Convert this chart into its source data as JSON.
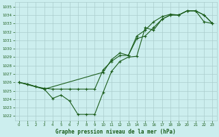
{
  "title": "Graphe pression niveau de la mer (hPa)",
  "background_color": "#cceeee",
  "grid_color": "#aacccc",
  "line_color": "#1a5c1a",
  "xlim": [
    -0.5,
    23.5
  ],
  "ylim": [
    1021.5,
    1035.5
  ],
  "xticks": [
    0,
    1,
    2,
    3,
    4,
    5,
    6,
    7,
    8,
    9,
    10,
    11,
    12,
    13,
    14,
    15,
    16,
    17,
    18,
    19,
    20,
    21,
    22,
    23
  ],
  "yticks": [
    1022,
    1023,
    1024,
    1025,
    1026,
    1027,
    1028,
    1029,
    1030,
    1031,
    1032,
    1033,
    1034,
    1035
  ],
  "series1_x": [
    0,
    1,
    2,
    3,
    4,
    5,
    6,
    7,
    8,
    9,
    10,
    11,
    12,
    13,
    14,
    15,
    16,
    17,
    18,
    19,
    20,
    21,
    22,
    23
  ],
  "series1_y": [
    1026.0,
    1025.8,
    1025.5,
    1025.3,
    1025.2,
    1025.2,
    1025.2,
    1025.2,
    1025.2,
    1025.2,
    1027.5,
    1028.5,
    1029.2,
    1029.2,
    1031.2,
    1031.5,
    1032.5,
    1033.5,
    1034.0,
    1034.0,
    1034.5,
    1034.5,
    1033.2,
    1033.0
  ],
  "series2_x": [
    0,
    1,
    2,
    3,
    10,
    11,
    12,
    13,
    14,
    15,
    16,
    17,
    18,
    19,
    20,
    21,
    22,
    23
  ],
  "series2_y": [
    1026.0,
    1025.8,
    1025.5,
    1025.2,
    1027.2,
    1028.7,
    1029.5,
    1029.2,
    1031.5,
    1032.2,
    1033.2,
    1033.8,
    1034.1,
    1034.0,
    1034.5,
    1034.5,
    1034.0,
    1033.0
  ],
  "series3_x": [
    0,
    3,
    4,
    5,
    6,
    7,
    8,
    9,
    10,
    11,
    12,
    13,
    14,
    15,
    16,
    17,
    18,
    19,
    20,
    21,
    22,
    23
  ],
  "series3_y": [
    1026.0,
    1025.2,
    1024.1,
    1024.5,
    1023.8,
    1022.2,
    1022.2,
    1022.2,
    1024.8,
    1027.3,
    1028.5,
    1029.0,
    1029.1,
    1032.5,
    1032.2,
    1033.5,
    1034.0,
    1034.0,
    1034.5,
    1034.5,
    1034.0,
    1033.0
  ]
}
